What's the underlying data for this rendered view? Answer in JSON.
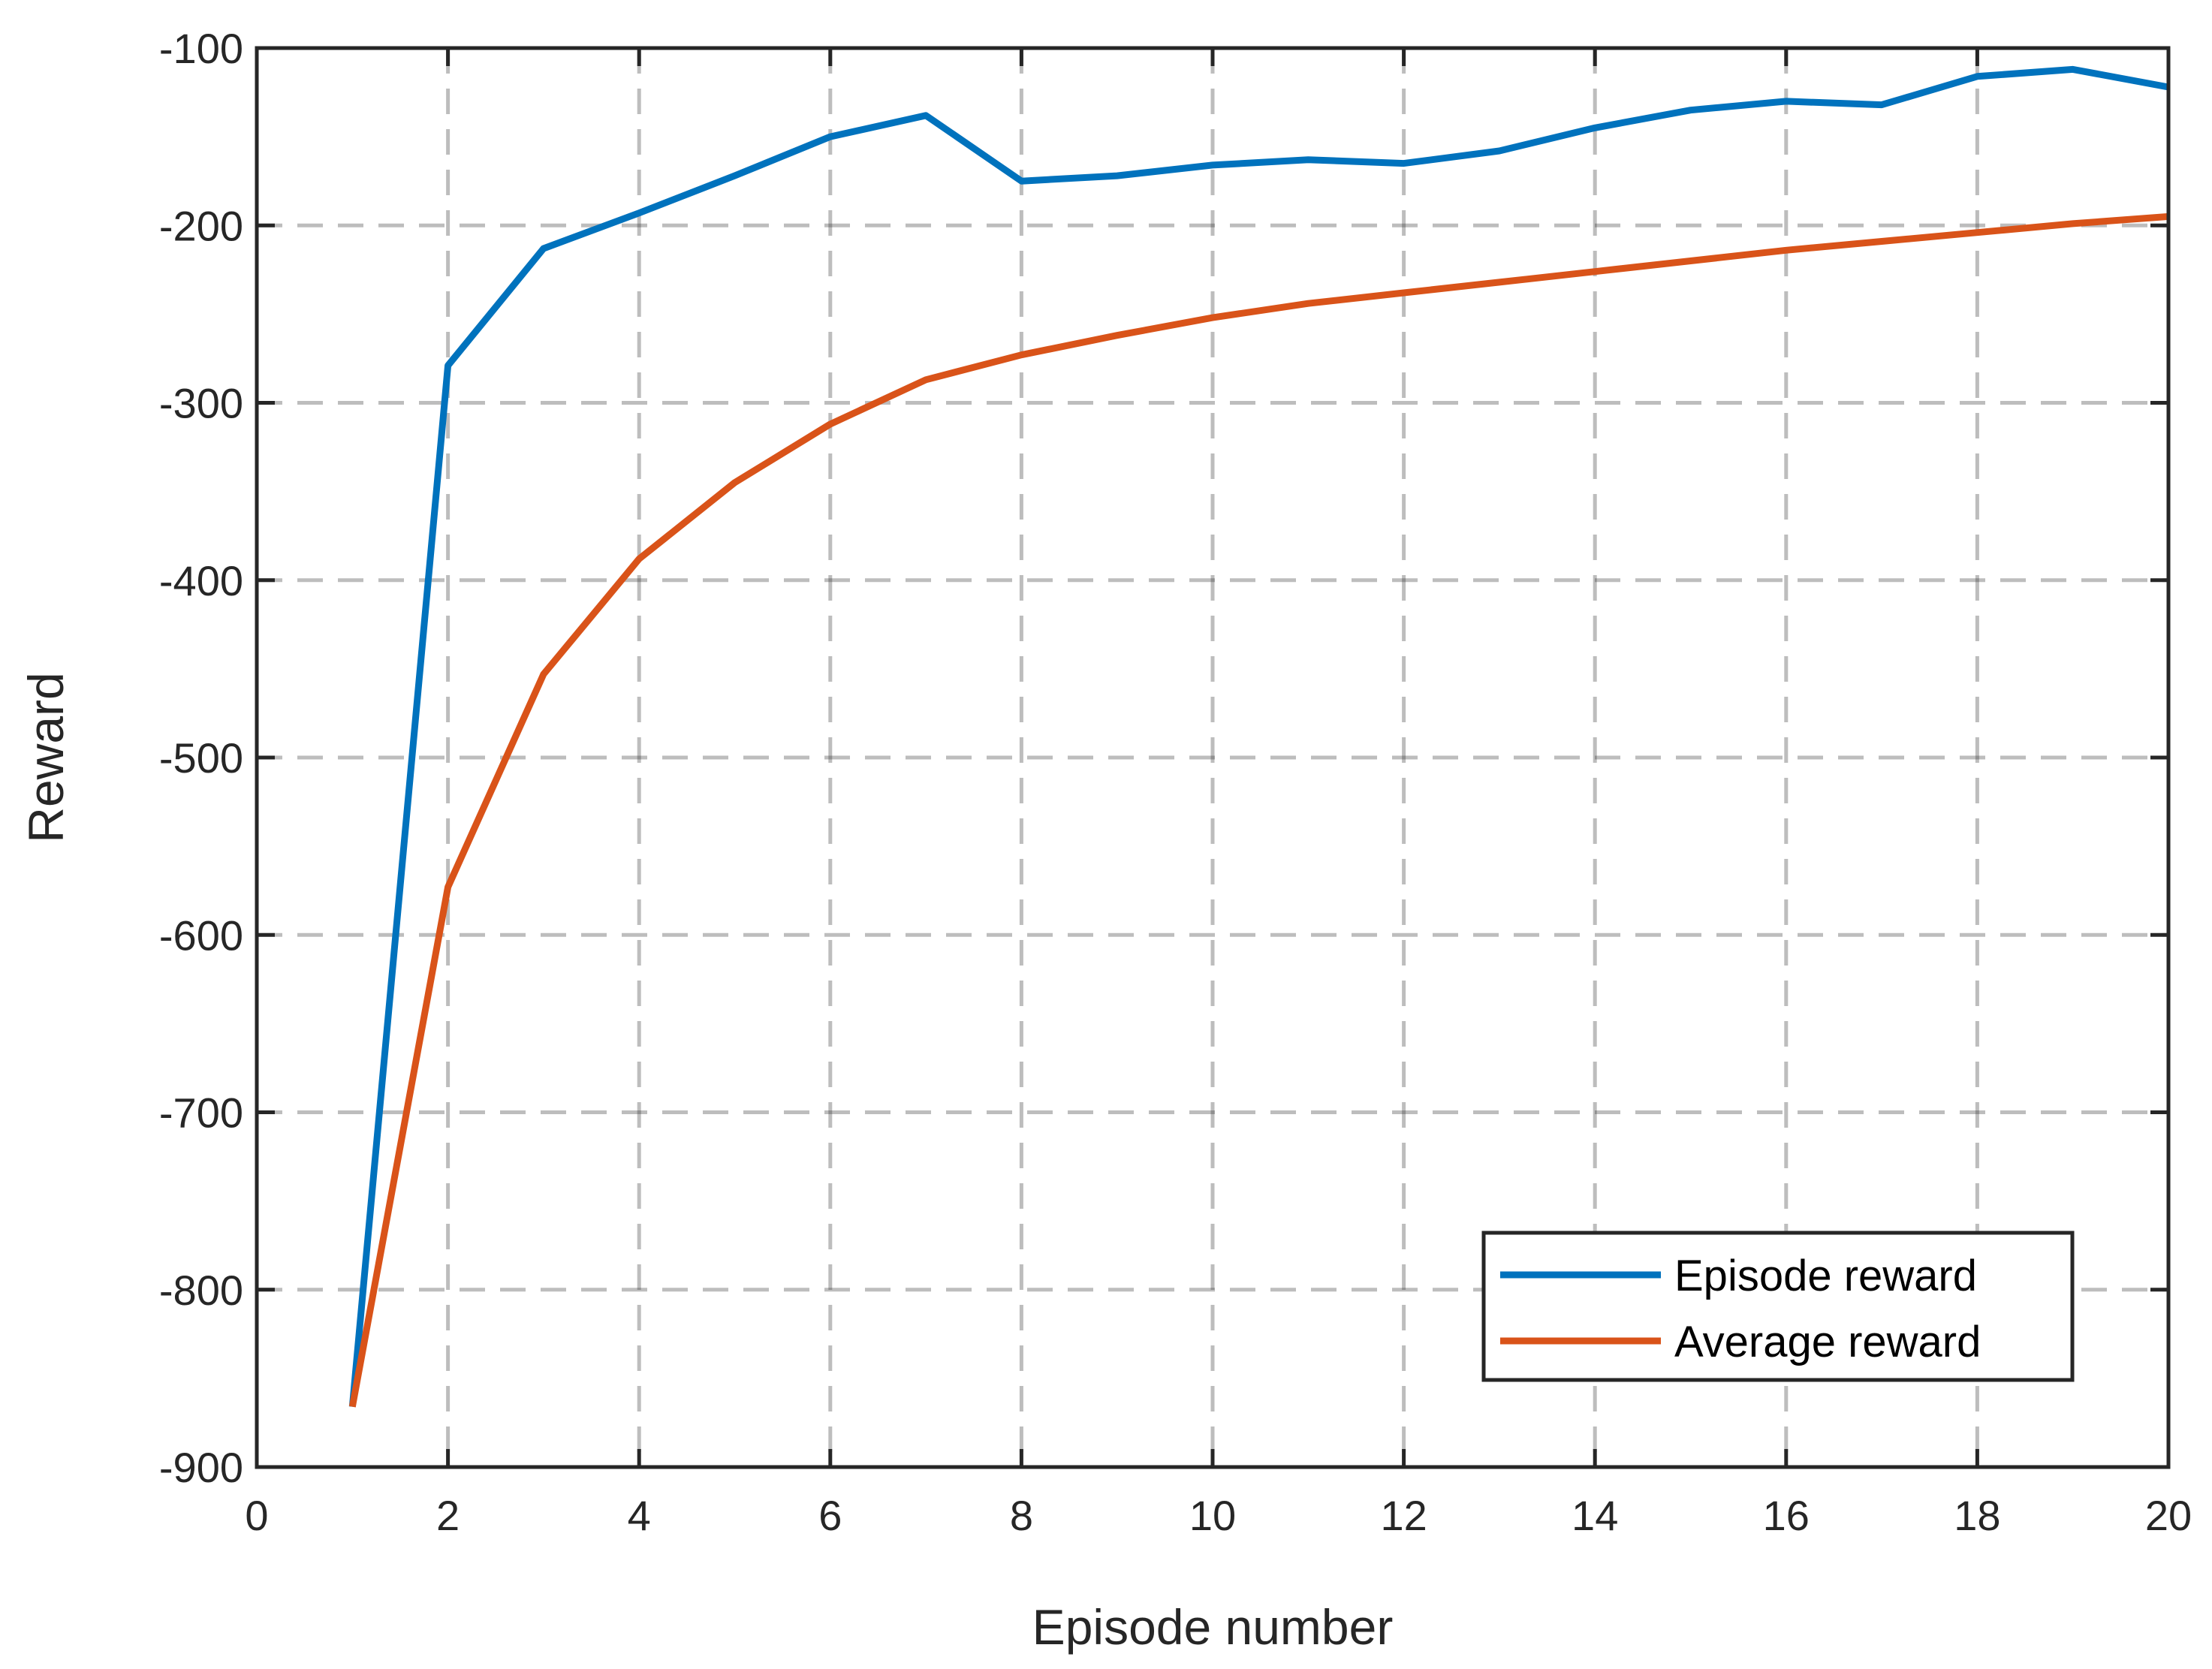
{
  "chart_data": {
    "type": "line",
    "title": "",
    "xlabel": "Episode number",
    "ylabel": "Reward",
    "xlim": [
      0,
      20
    ],
    "ylim": [
      -900,
      -100
    ],
    "xticks": [
      0,
      2,
      4,
      6,
      8,
      10,
      12,
      14,
      16,
      18,
      20
    ],
    "yticks": [
      -900,
      -800,
      -700,
      -600,
      -500,
      -400,
      -300,
      -200,
      -100
    ],
    "grid": true,
    "grid_style": "dashed",
    "legend_position": "bottom-right",
    "x": [
      1,
      2,
      3,
      4,
      5,
      6,
      7,
      8,
      9,
      10,
      11,
      12,
      13,
      14,
      15,
      16,
      17,
      18,
      19,
      20
    ],
    "series": [
      {
        "name": "Episode reward",
        "color": "#0072BD",
        "values": [
          -866,
          -279,
          -213,
          -193,
          -172,
          -150,
          -138,
          -175,
          -172,
          -166,
          -163,
          -165,
          -158,
          -145,
          -135,
          -130,
          -132,
          -116,
          -112,
          -122
        ]
      },
      {
        "name": "Average reward",
        "color": "#D95319",
        "values": [
          -866,
          -573,
          -453,
          -388,
          -345,
          -312,
          -287,
          -273,
          -262,
          -252,
          -244,
          -238,
          -232,
          -226,
          -220,
          -214,
          -209,
          -204,
          -199,
          -195
        ]
      }
    ]
  }
}
